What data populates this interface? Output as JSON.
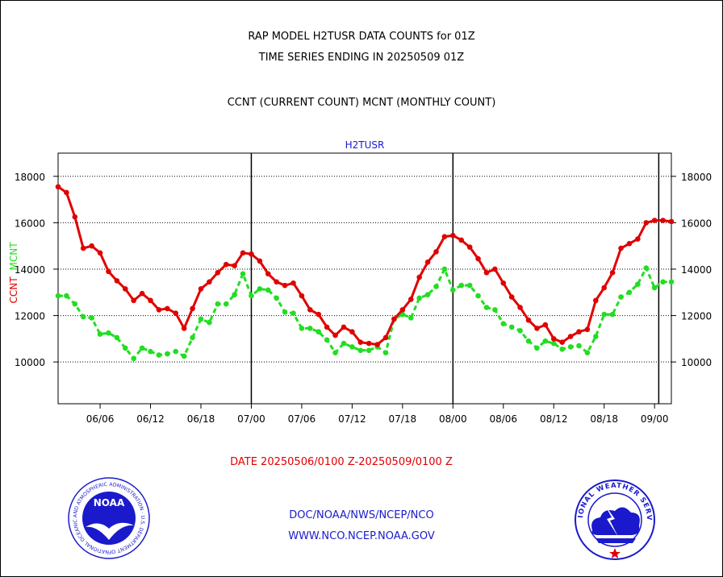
{
  "header": {
    "line1": "RAP MODEL H2TUSR DATA COUNTS for 01Z",
    "line2": "TIME SERIES ENDING IN 20250509 01Z",
    "line3": "CCNT (CURRENT COUNT) MCNT (MONTHLY COUNT)"
  },
  "footer": {
    "date_range": "DATE 20250506/0100 Z-20250509/0100 Z",
    "org_path": "DOC/NOAA/NWS/NCEP/NCO",
    "website": "WWW.NCO.NCEP.NOAA.GOV"
  },
  "logos": {
    "noaa_text": "NOAA",
    "noaa_ring": "NATIONAL OCEANIC AND ATMOSPHERIC ADMINISTRATION · U.S. DEPARTMENT OF COMMERCE ·",
    "nws_ring": "NATIONAL WEATHER SERVICE"
  },
  "colors": {
    "ccnt": "#e00000",
    "mcnt": "#22dd22",
    "title": "#1a1acc"
  },
  "chart_data": {
    "type": "line",
    "title": "H2TUSR",
    "ylabel_left": "CCNT",
    "ylabel_right": "MCNT",
    "ylim": [
      8200,
      19000
    ],
    "yticks": [
      10000,
      12000,
      14000,
      16000,
      18000
    ],
    "grid": "horizontal",
    "x": [
      0,
      1,
      2,
      3,
      4,
      5,
      6,
      7,
      8,
      9,
      10,
      11,
      12,
      13,
      14,
      15,
      16,
      17,
      18,
      19,
      20,
      21,
      22,
      23,
      24,
      25,
      26,
      27,
      28,
      29,
      30,
      31,
      32,
      33,
      34,
      35,
      36,
      37,
      38,
      39,
      40,
      41,
      42,
      43,
      44,
      45,
      46,
      47,
      48,
      49,
      50,
      51,
      52,
      53,
      54,
      55,
      56,
      57,
      58,
      59,
      60,
      61,
      62,
      63,
      64,
      65,
      66,
      67,
      68,
      69,
      70,
      71,
      72,
      73
    ],
    "xlim": [
      0,
      73
    ],
    "xticks": [
      {
        "at": 5,
        "label": "06/06"
      },
      {
        "at": 11,
        "label": "06/12"
      },
      {
        "at": 17,
        "label": "06/18"
      },
      {
        "at": 23,
        "label": "07/00"
      },
      {
        "at": 29,
        "label": "07/06"
      },
      {
        "at": 35,
        "label": "07/12"
      },
      {
        "at": 41,
        "label": "07/18"
      },
      {
        "at": 47,
        "label": "08/00"
      },
      {
        "at": 53,
        "label": "08/06"
      },
      {
        "at": 59,
        "label": "08/12"
      },
      {
        "at": 65,
        "label": "08/18"
      },
      {
        "at": 71,
        "label": "09/00"
      }
    ],
    "day_boundaries": [
      23,
      47,
      71.5
    ],
    "series": [
      {
        "name": "CCNT",
        "color": "#e00000",
        "values": [
          17550,
          17300,
          16250,
          14900,
          15000,
          14700,
          13900,
          13500,
          13150,
          12650,
          12950,
          12650,
          12250,
          12300,
          12100,
          11450,
          12300,
          13150,
          13450,
          13850,
          14200,
          14150,
          14700,
          14650,
          14350,
          13800,
          13450,
          13300,
          13400,
          12850,
          12250,
          12050,
          11500,
          11150,
          11500,
          11300,
          10850,
          10800,
          10750,
          11050,
          11850,
          12250,
          12700,
          13650,
          14300,
          14750,
          15400,
          15450,
          15250,
          14950,
          14450,
          13850,
          14000,
          13400,
          12800,
          12350,
          11800,
          11450,
          11600,
          11000,
          10850,
          11100,
          11300,
          11400,
          12650,
          13200,
          13850,
          14900,
          15100,
          15300,
          16000,
          16100,
          16100,
          16050
        ]
      },
      {
        "name": "MCNT",
        "color": "#22dd22",
        "values": [
          12850,
          12850,
          12500,
          11950,
          11900,
          11200,
          11250,
          11050,
          10600,
          10150,
          10600,
          10450,
          10300,
          10350,
          10450,
          10250,
          11050,
          11850,
          11700,
          12500,
          12500,
          12900,
          13800,
          12850,
          13150,
          13100,
          12750,
          12150,
          12100,
          11450,
          11450,
          11300,
          10950,
          10400,
          10800,
          10650,
          10500,
          10500,
          10650,
          10400,
          11850,
          12050,
          11900,
          12750,
          12900,
          13250,
          14000,
          13100,
          13300,
          13300,
          12850,
          12350,
          12250,
          11650,
          11500,
          11350,
          10900,
          10600,
          10900,
          10800,
          10550,
          10650,
          10700,
          10400,
          11100,
          12050,
          12050,
          12800,
          13000,
          13350,
          14050,
          13200,
          13450,
          13450
        ]
      }
    ]
  }
}
